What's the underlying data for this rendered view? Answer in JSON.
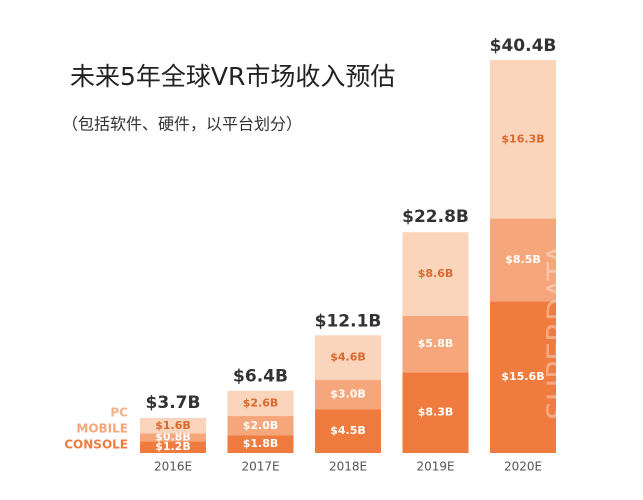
{
  "chart_data": {
    "type": "stacked-bar",
    "title": "未来5年全球VR市场收入预估",
    "subtitle": "（包括软件、硬件，以平台划分）",
    "categories": [
      "2016E",
      "2017E",
      "2018E",
      "2019E",
      "2020E"
    ],
    "series": [
      {
        "name": "CONSOLE",
        "color": "#f07b3f",
        "values": [
          1.2,
          1.8,
          4.5,
          8.3,
          15.6
        ],
        "value_labels": [
          "$1.2B",
          "$1.8B",
          "$4.5B",
          "$8.3B",
          "$15.6B"
        ]
      },
      {
        "name": "MOBILE",
        "color": "#f5a67a",
        "values": [
          0.8,
          2.0,
          3.0,
          5.8,
          8.5
        ],
        "value_labels": [
          "$0.8B",
          "$2.0B",
          "$3.0B",
          "$5.8B",
          "$8.5B"
        ]
      },
      {
        "name": "PC",
        "color": "#fad4bb",
        "values": [
          1.6,
          2.6,
          4.6,
          8.6,
          16.3
        ],
        "value_labels": [
          "$1.6B",
          "$2.6B",
          "$4.6B",
          "$8.6B",
          "$16.3B"
        ]
      }
    ],
    "totals": {
      "values": [
        3.7,
        6.4,
        12.1,
        22.8,
        40.4
      ],
      "value_labels": [
        "$3.7B",
        "$6.4B",
        "$12.1B",
        "$22.8B",
        "$40.4B"
      ]
    },
    "watermark": "SUPERDATA"
  }
}
